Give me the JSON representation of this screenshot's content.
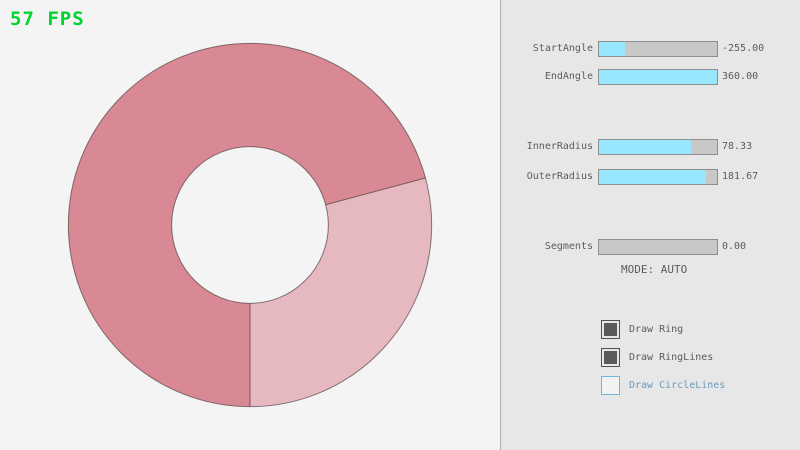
{
  "fps": "57 FPS",
  "colors": {
    "fps_green": "#00d52f",
    "canvas_bg": "#f4f4f4",
    "panel_bg": "#e7e7e7",
    "ring_dark": "#d98994",
    "ring_light": "#e6b8bf",
    "ring_outline": "rgba(0,0,0,0.45)",
    "slider_fill": "#97e8ff",
    "slider_track": "#c8c8c8",
    "accent_blue": "#6c9bbc",
    "checkbox_blue_border": "#6fb6d9"
  },
  "panel": {
    "sliders": [
      {
        "label": "StartAngle",
        "value": "-255.00",
        "fill_pct": 22
      },
      {
        "label": "EndAngle",
        "value": "360.00",
        "fill_pct": 100
      },
      {
        "label": "InnerRadius",
        "value": "78.33",
        "fill_pct": 78
      },
      {
        "label": "OuterRadius",
        "value": "181.67",
        "fill_pct": 91
      },
      {
        "label": "Segments",
        "value": "0.00",
        "fill_pct": 0
      }
    ],
    "mode_label": "MODE: AUTO",
    "checkboxes": [
      {
        "label": "Draw Ring",
        "checked": true
      },
      {
        "label": "Draw RingLines",
        "checked": true
      },
      {
        "label": "Draw CircleLines",
        "checked": false
      }
    ]
  }
}
